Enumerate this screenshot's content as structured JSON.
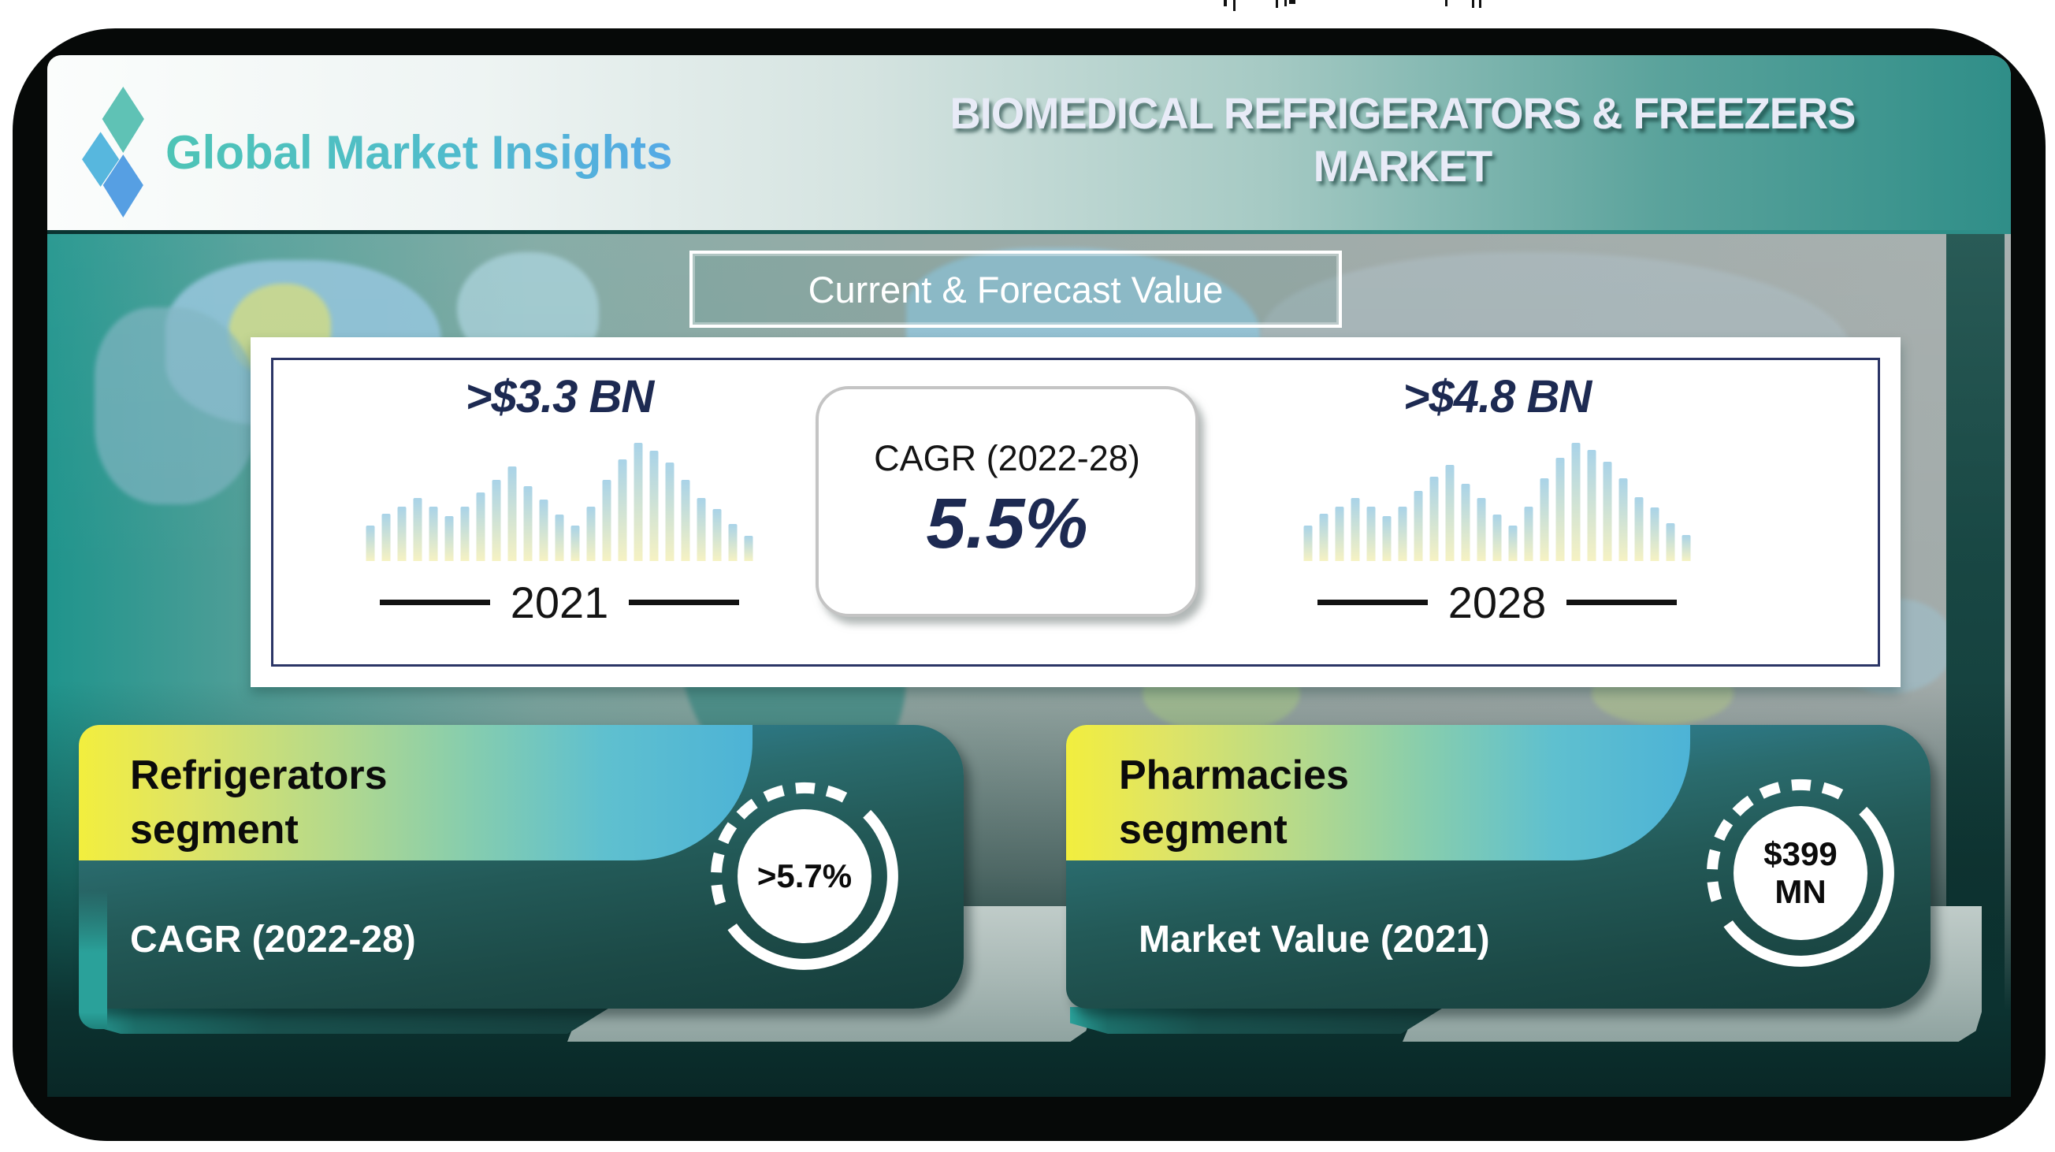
{
  "header": {
    "logo": {
      "text": "Global Market Insights",
      "icon": "gmi-diamonds-icon"
    },
    "title_line1": "BIOMEDICAL REFRIGERATORS & FREEZERS",
    "title_line2": "MARKET"
  },
  "banner": {
    "label": "Current & Forecast Value"
  },
  "chart_data": {
    "type": "bar",
    "title": "Current & Forecast Value",
    "legend": "none",
    "grid": false,
    "bar_color_top": "#a9d3e8",
    "bar_color_bottom": "#f6f2c3",
    "series": [
      {
        "year": "2021",
        "value_label": ">$3.3 BN",
        "relative_heights": [
          0.3,
          0.4,
          0.46,
          0.53,
          0.46,
          0.38,
          0.46,
          0.58,
          0.69,
          0.8,
          0.63,
          0.52,
          0.39,
          0.3,
          0.46,
          0.69,
          0.86,
          1.0,
          0.93,
          0.83,
          0.69,
          0.53,
          0.44,
          0.31,
          0.21
        ]
      },
      {
        "year": "2028",
        "value_label": ">$4.8 BN",
        "relative_heights": [
          0.3,
          0.4,
          0.46,
          0.53,
          0.46,
          0.38,
          0.46,
          0.59,
          0.71,
          0.81,
          0.65,
          0.53,
          0.39,
          0.3,
          0.46,
          0.7,
          0.87,
          1.0,
          0.94,
          0.84,
          0.7,
          0.54,
          0.45,
          0.32,
          0.22
        ]
      }
    ],
    "cagr": {
      "label": "CAGR (2022-28)",
      "value": "5.5%"
    }
  },
  "cards": [
    {
      "title_line1": "Refrigerators",
      "title_line2": "segment",
      "metric_label": "CAGR (2022-28)",
      "stat_line1": ">5.7%",
      "stat_line2": "",
      "icon": "refrigerator-icon"
    },
    {
      "title_line1": "Pharmacies",
      "title_line2": "segment",
      "metric_label": "Market Value (2021)",
      "stat_line1": "$399",
      "stat_line2": "MN",
      "icon": ""
    }
  ],
  "colors": {
    "header_teal": "#2f8e88",
    "navy": "#1d2a52",
    "band_yellow": "#f2ee3e",
    "band_cyan": "#4db3d6",
    "card_dark_teal": "#1c4a47",
    "back_panel_gray": "#a7b7b4"
  }
}
